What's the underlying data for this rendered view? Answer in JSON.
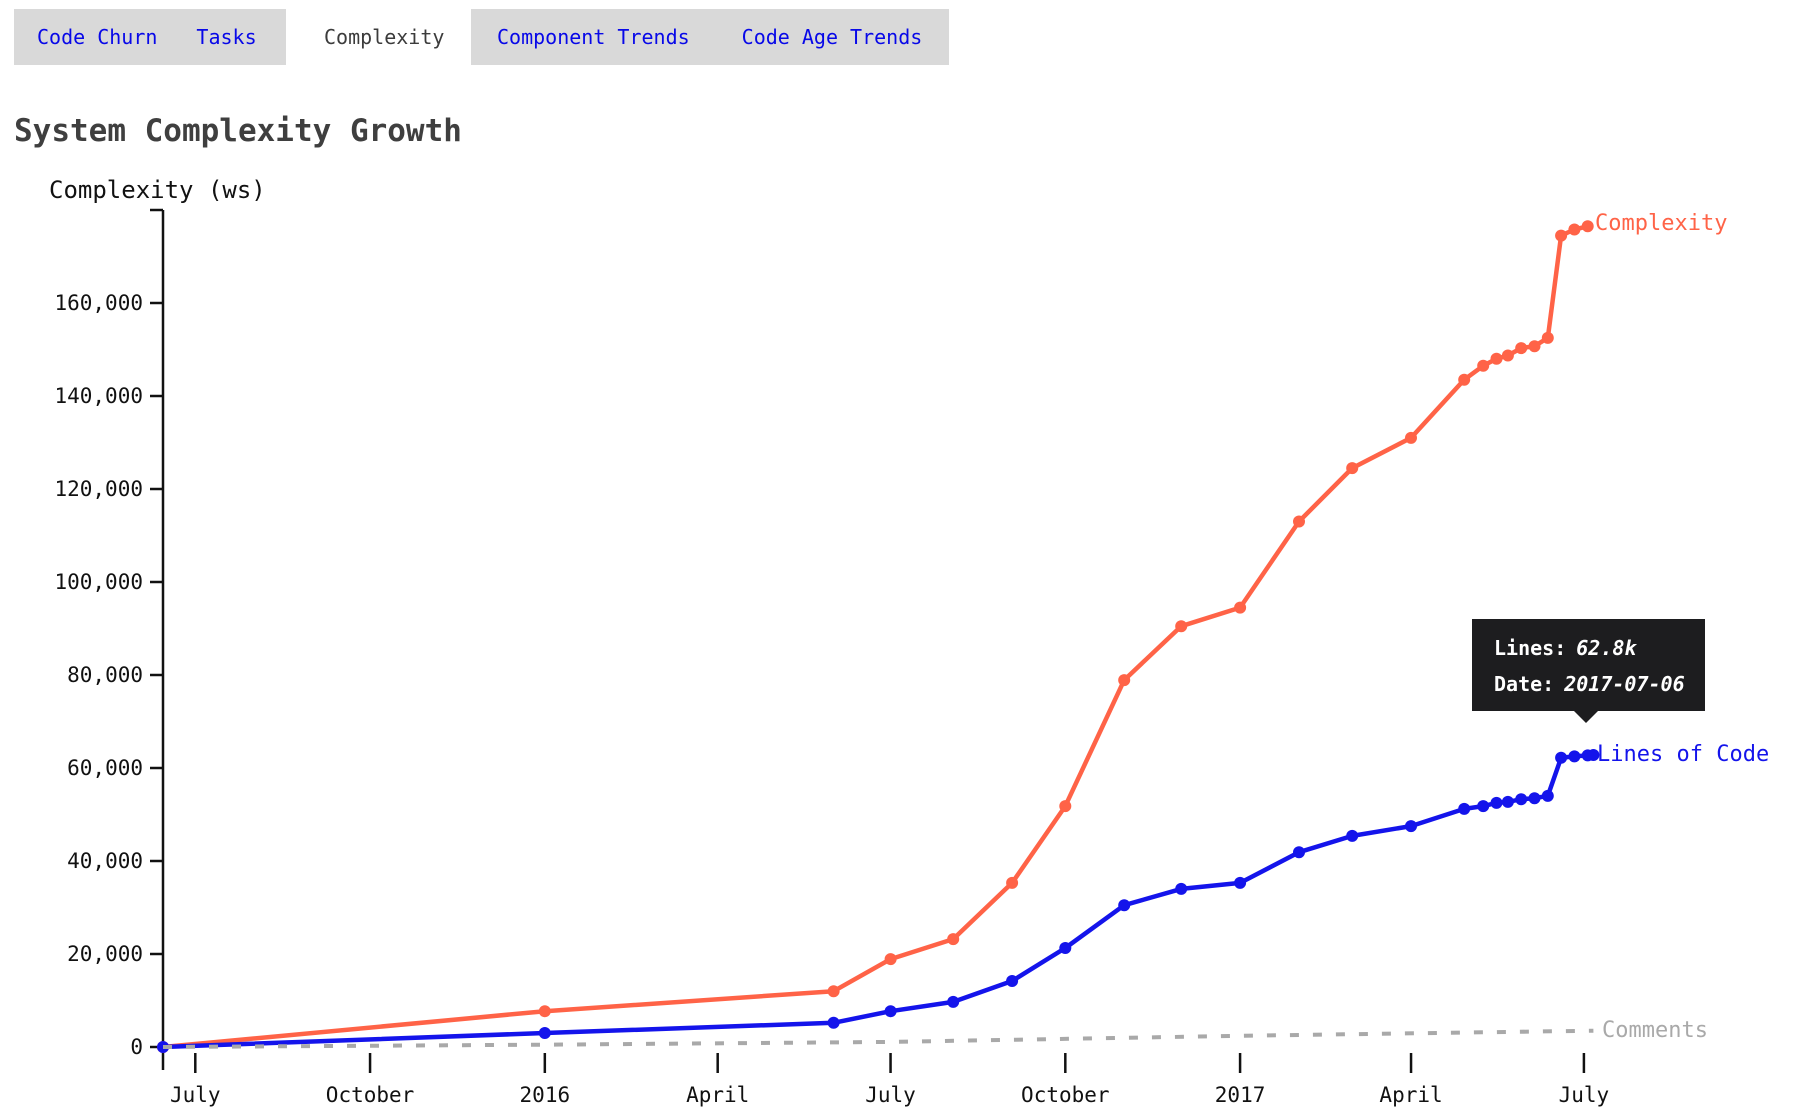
{
  "tab_bar": {
    "active_tab": "Complexity",
    "tabs": [
      {
        "label": "Code Churn"
      },
      {
        "label": "Tasks"
      },
      {
        "label": "Complexity"
      },
      {
        "label": "Component Trends"
      },
      {
        "label": "Code Age Trends"
      }
    ]
  },
  "page": {
    "title": "System Complexity Growth"
  },
  "chart_data": {
    "type": "line",
    "title": "System Complexity Growth",
    "xlabel": "",
    "ylabel": "Complexity (ws)",
    "grid": false,
    "legend_position": "line-end-labels",
    "x_domain": [
      "2015-06-14",
      "2017-07-20"
    ],
    "ylim": [
      0,
      180000
    ],
    "y_ticks": [
      {
        "value": 0,
        "label": "0"
      },
      {
        "value": 20000,
        "label": "20,000"
      },
      {
        "value": 40000,
        "label": "40,000"
      },
      {
        "value": 60000,
        "label": "60,000"
      },
      {
        "value": 80000,
        "label": "80,000"
      },
      {
        "value": 100000,
        "label": "100,000"
      },
      {
        "value": 120000,
        "label": "120,000"
      },
      {
        "value": 140000,
        "label": "140,000"
      },
      {
        "value": 160000,
        "label": "160,000"
      }
    ],
    "x_ticks": [
      {
        "date": "2015-07-01",
        "label": "July"
      },
      {
        "date": "2015-10-01",
        "label": "October"
      },
      {
        "date": "2016-01-01",
        "label": "2016"
      },
      {
        "date": "2016-04-01",
        "label": "April"
      },
      {
        "date": "2016-07-01",
        "label": "July"
      },
      {
        "date": "2016-10-01",
        "label": "October"
      },
      {
        "date": "2017-01-01",
        "label": "2017"
      },
      {
        "date": "2017-04-01",
        "label": "April"
      },
      {
        "date": "2017-07-01",
        "label": "July"
      }
    ],
    "series": [
      {
        "name": "Complexity",
        "color": "#ff6347",
        "style": "solid",
        "markers": true,
        "points": [
          [
            "2015-06-14",
            0
          ],
          [
            "2016-01-01",
            7700
          ],
          [
            "2016-06-01",
            12000
          ],
          [
            "2016-07-01",
            18900
          ],
          [
            "2016-08-03",
            23200
          ],
          [
            "2016-09-03",
            35300
          ],
          [
            "2016-10-01",
            51800
          ],
          [
            "2016-11-01",
            78900
          ],
          [
            "2016-12-01",
            90500
          ],
          [
            "2017-01-01",
            94500
          ],
          [
            "2017-02-01",
            113000
          ],
          [
            "2017-03-01",
            124500
          ],
          [
            "2017-04-01",
            131000
          ],
          [
            "2017-04-29",
            143500
          ],
          [
            "2017-05-09",
            146500
          ],
          [
            "2017-05-16",
            148000
          ],
          [
            "2017-05-22",
            148700
          ],
          [
            "2017-05-29",
            150300
          ],
          [
            "2017-06-05",
            150700
          ],
          [
            "2017-06-12",
            152500
          ],
          [
            "2017-06-19",
            174500
          ],
          [
            "2017-06-26",
            175800
          ],
          [
            "2017-07-03",
            176500
          ]
        ]
      },
      {
        "name": "Lines of Code",
        "color": "#1414eb",
        "style": "solid",
        "markers": true,
        "points": [
          [
            "2015-06-14",
            0
          ],
          [
            "2016-01-01",
            3000
          ],
          [
            "2016-06-01",
            5200
          ],
          [
            "2016-07-01",
            7700
          ],
          [
            "2016-08-03",
            9700
          ],
          [
            "2016-09-03",
            14200
          ],
          [
            "2016-10-01",
            21300
          ],
          [
            "2016-11-01",
            30500
          ],
          [
            "2016-12-01",
            34000
          ],
          [
            "2017-01-01",
            35300
          ],
          [
            "2017-02-01",
            41900
          ],
          [
            "2017-03-01",
            45400
          ],
          [
            "2017-04-01",
            47500
          ],
          [
            "2017-04-29",
            51200
          ],
          [
            "2017-05-09",
            51800
          ],
          [
            "2017-05-16",
            52500
          ],
          [
            "2017-05-22",
            52700
          ],
          [
            "2017-05-29",
            53300
          ],
          [
            "2017-06-05",
            53500
          ],
          [
            "2017-06-12",
            54000
          ],
          [
            "2017-06-19",
            62200
          ],
          [
            "2017-06-26",
            62500
          ],
          [
            "2017-07-03",
            62700
          ],
          [
            "2017-07-06",
            62800
          ]
        ]
      },
      {
        "name": "Comments",
        "color": "#a9a9a9",
        "style": "dashed",
        "markers": false,
        "points": [
          [
            "2015-06-14",
            0
          ],
          [
            "2016-01-01",
            500
          ],
          [
            "2016-07-01",
            1100
          ],
          [
            "2017-01-01",
            2400
          ],
          [
            "2017-07-06",
            3500
          ]
        ]
      }
    ]
  },
  "tooltip": {
    "lines_label": "Lines:",
    "lines_value": "62.8k",
    "date_label": "Date:",
    "date_value": "2017-07-06"
  }
}
